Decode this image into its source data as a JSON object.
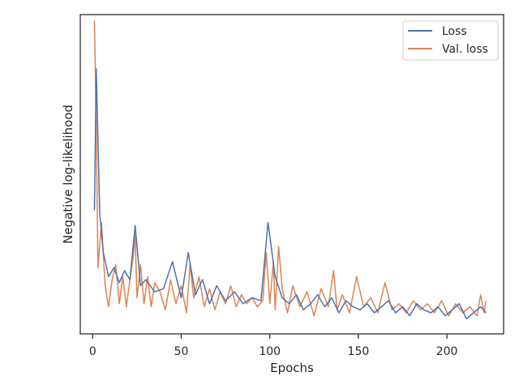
{
  "chart_data": {
    "type": "line",
    "title": "",
    "xlabel": "Epochs",
    "ylabel": "Negative log-likelihood",
    "xlim": [
      -7,
      232
    ],
    "ylim": [
      -0.04,
      1.02
    ],
    "xticks": [
      0,
      50,
      100,
      150,
      200
    ],
    "yticks_shown": false,
    "grid": false,
    "legend_position": "top-right",
    "series": [
      {
        "name": "Loss",
        "color": "#4c72b0",
        "x": [
          1,
          2,
          4,
          6,
          9,
          12,
          15,
          18,
          21,
          24,
          27,
          30,
          35,
          40,
          45,
          50,
          54,
          58,
          62,
          66,
          70,
          75,
          80,
          85,
          90,
          95,
          99,
          103,
          107,
          111,
          115,
          119,
          123,
          127,
          131,
          135,
          139,
          143,
          147,
          151,
          155,
          159,
          163,
          167,
          171,
          175,
          179,
          183,
          187,
          191,
          195,
          199,
          203,
          207,
          211,
          215,
          219,
          222
        ],
        "y": [
          0.37,
          0.84,
          0.36,
          0.23,
          0.15,
          0.18,
          0.13,
          0.17,
          0.14,
          0.32,
          0.12,
          0.14,
          0.1,
          0.11,
          0.2,
          0.08,
          0.23,
          0.09,
          0.14,
          0.06,
          0.12,
          0.07,
          0.1,
          0.06,
          0.08,
          0.07,
          0.33,
          0.15,
          0.08,
          0.06,
          0.09,
          0.04,
          0.06,
          0.09,
          0.05,
          0.08,
          0.03,
          0.07,
          0.05,
          0.04,
          0.06,
          0.03,
          0.05,
          0.07,
          0.03,
          0.05,
          0.02,
          0.06,
          0.04,
          0.03,
          0.05,
          0.02,
          0.04,
          0.06,
          0.01,
          0.03,
          0.05,
          0.03
        ]
      },
      {
        "name": "Val. loss",
        "color": "#dd8452",
        "x": [
          1,
          2,
          3,
          5,
          7,
          9,
          11,
          13,
          15,
          17,
          19,
          21,
          23,
          24,
          25,
          27,
          29,
          31,
          33,
          35,
          38,
          41,
          44,
          47,
          50,
          53,
          55,
          57,
          60,
          63,
          66,
          69,
          72,
          75,
          78,
          81,
          84,
          87,
          90,
          93,
          96,
          98,
          100,
          102,
          103,
          105,
          107,
          110,
          113,
          117,
          121,
          125,
          129,
          133,
          136,
          138,
          141,
          145,
          149,
          153,
          157,
          161,
          165,
          169,
          173,
          177,
          181,
          185,
          189,
          193,
          197,
          201,
          205,
          209,
          213,
          217,
          219,
          221,
          222
        ],
        "y": [
          1.0,
          0.64,
          0.18,
          0.33,
          0.12,
          0.05,
          0.14,
          0.19,
          0.06,
          0.15,
          0.05,
          0.14,
          0.22,
          0.29,
          0.08,
          0.19,
          0.06,
          0.15,
          0.05,
          0.13,
          0.1,
          0.04,
          0.14,
          0.06,
          0.12,
          0.03,
          0.19,
          0.08,
          0.15,
          0.05,
          0.11,
          0.04,
          0.1,
          0.06,
          0.12,
          0.05,
          0.09,
          0.06,
          0.08,
          0.05,
          0.07,
          0.23,
          0.06,
          0.2,
          0.04,
          0.25,
          0.11,
          0.03,
          0.12,
          0.05,
          0.1,
          0.02,
          0.11,
          0.05,
          0.17,
          0.04,
          0.09,
          0.03,
          0.15,
          0.05,
          0.08,
          0.03,
          0.13,
          0.04,
          0.06,
          0.03,
          0.07,
          0.04,
          0.06,
          0.03,
          0.07,
          0.02,
          0.06,
          0.03,
          0.05,
          0.02,
          0.09,
          0.03,
          0.07
        ]
      }
    ]
  }
}
